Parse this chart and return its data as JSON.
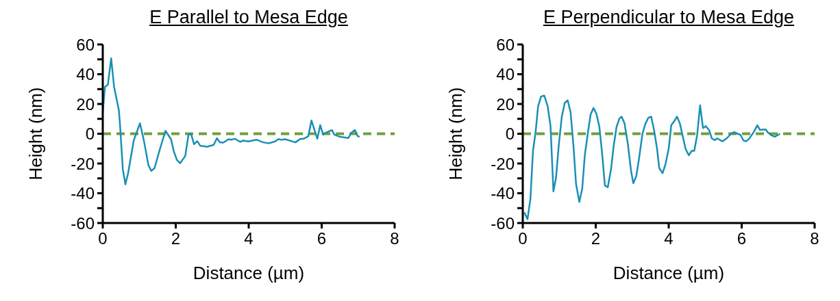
{
  "chart_data": [
    {
      "type": "line",
      "title": "E Parallel to Mesa Edge",
      "xlabel": "Distance (µm)",
      "ylabel": "Height (nm)",
      "xlim": [
        0,
        8
      ],
      "xticks": [
        0,
        2,
        4,
        6,
        8
      ],
      "ylim": [
        -60,
        60
      ],
      "yticks": [
        -60,
        {
          "value": -50,
          "label": null
        },
        -40,
        {
          "value": -30,
          "label": null
        },
        -20,
        {
          "value": -10,
          "label": null
        },
        0,
        {
          "value": 10,
          "label": null
        },
        20,
        {
          "value": 30,
          "label": null
        },
        40,
        {
          "value": 50,
          "label": null
        },
        60
      ],
      "grid": false,
      "legend": false,
      "marker": "none",
      "line_style": "solid",
      "ref_lines": [
        {
          "axis": "y",
          "value": 0,
          "color": "#6fa03c",
          "line_style": "dashed"
        }
      ],
      "series": [
        {
          "color": "#1a8fb5",
          "x": [
            0,
            0.06,
            0.14,
            0.23,
            0.31,
            0.44,
            0.47,
            0.55,
            0.62,
            0.69,
            0.79,
            0.85,
            1.02,
            1.13,
            1.25,
            1.33,
            1.42,
            1.57,
            1.72,
            1.87,
            1.95,
            2.03,
            2.12,
            2.26,
            2.35,
            2.42,
            2.5,
            2.59,
            2.67,
            2.86,
            3.04,
            3.13,
            3.21,
            3.3,
            3.45,
            3.52,
            3.62,
            3.77,
            3.85,
            3.99,
            4.21,
            4.4,
            4.56,
            4.72,
            4.81,
            4.91,
            5.0,
            5.28,
            5.42,
            5.5,
            5.63,
            5.72,
            5.88,
            5.96,
            6.04,
            6.11,
            6.28,
            6.35,
            6.51,
            6.73,
            6.81,
            6.91,
            6.98,
            7.04
          ],
          "values": [
            14.7,
            31.5,
            33,
            50.7,
            31.5,
            16,
            7,
            -24,
            -34,
            -27,
            -13,
            -4.4,
            7,
            -5,
            -21,
            -25,
            -23,
            -10,
            2,
            -3.7,
            -12,
            -17.5,
            -19.8,
            -15,
            -0.6,
            0,
            -7,
            -5,
            -8,
            -8.7,
            -7.5,
            -3,
            -5.8,
            -6,
            -3.7,
            -4,
            -3.4,
            -5.5,
            -4.6,
            -5.2,
            -4,
            -5.8,
            -6.4,
            -5.2,
            -3.7,
            -4,
            -3.7,
            -5.8,
            -3.4,
            -3.4,
            -1.8,
            8.9,
            -3.4,
            5.8,
            -0.6,
            0.6,
            2.5,
            -0.6,
            -2.1,
            -2.9,
            0.6,
            2.5,
            -1.4,
            -2.1
          ]
        }
      ]
    },
    {
      "type": "line",
      "title": "E Perpendicular to Mesa Edge",
      "xlabel": "Distance (µm)",
      "ylabel": "Height (nm)",
      "xlim": [
        0,
        8
      ],
      "xticks": [
        0,
        2,
        4,
        6,
        8
      ],
      "ylim": [
        -60,
        60
      ],
      "yticks": [
        -60,
        {
          "value": -50,
          "label": null
        },
        -40,
        {
          "value": -30,
          "label": null
        },
        -20,
        {
          "value": -10,
          "label": null
        },
        0,
        {
          "value": 10,
          "label": null
        },
        20,
        {
          "value": 30,
          "label": null
        },
        40,
        {
          "value": 50,
          "label": null
        },
        60
      ],
      "grid": false,
      "legend": false,
      "marker": "none",
      "line_style": "solid",
      "ref_lines": [
        {
          "axis": "y",
          "value": 0,
          "color": "#6fa03c",
          "line_style": "dashed"
        }
      ],
      "series": [
        {
          "color": "#1a8fb5",
          "x": [
            0.04,
            0.13,
            0.21,
            0.28,
            0.35,
            0.42,
            0.5,
            0.59,
            0.68,
            0.76,
            0.84,
            0.91,
            0.99,
            1.07,
            1.15,
            1.23,
            1.31,
            1.39,
            1.46,
            1.55,
            1.63,
            1.7,
            1.79,
            1.86,
            1.94,
            2.02,
            2.1,
            2.18,
            2.25,
            2.33,
            2.42,
            2.49,
            2.57,
            2.65,
            2.71,
            2.79,
            2.88,
            2.97,
            3.03,
            3.11,
            3.19,
            3.28,
            3.36,
            3.44,
            3.52,
            3.6,
            3.68,
            3.74,
            3.83,
            3.91,
            4.0,
            4.07,
            4.15,
            4.23,
            4.31,
            4.39,
            4.46,
            4.55,
            4.63,
            4.7,
            4.78,
            4.86,
            4.94,
            5.02,
            5.11,
            5.18,
            5.26,
            5.33,
            5.47,
            5.59,
            5.71,
            5.79,
            5.89,
            5.97,
            6.05,
            6.12,
            6.2,
            6.33,
            6.43,
            6.5,
            6.66,
            6.72,
            6.82,
            6.91,
            7.05
          ],
          "values": [
            -52.8,
            -57.4,
            -43.6,
            -11.5,
            0.8,
            18.4,
            25,
            25.6,
            18.8,
            5.4,
            -38.7,
            -29.9,
            -6.9,
            11.5,
            20.7,
            22.5,
            14.5,
            -8.4,
            -33.7,
            -45.9,
            -36.8,
            -14.5,
            1.5,
            13,
            17.3,
            13.3,
            4.6,
            -14.5,
            -34.8,
            -36,
            -23.7,
            -8.4,
            4.6,
            10.3,
            11.5,
            6.9,
            -6.9,
            -25.3,
            -33.2,
            -28.6,
            -16.1,
            0,
            6.6,
            10.7,
            11.5,
            2.3,
            -10,
            -23,
            -26.5,
            -20.7,
            -10,
            5.7,
            8.4,
            11.5,
            6.6,
            -2.3,
            -10,
            -14.5,
            -11.5,
            -11.5,
            -0.8,
            19.1,
            3.8,
            5.1,
            2.3,
            -3.1,
            -4.3,
            -3.1,
            -5.1,
            -3.1,
            0,
            1.1,
            0,
            -0.8,
            -4.6,
            -5.1,
            -3.5,
            1.1,
            5.7,
            2.6,
            2.9,
            0.8,
            -1.1,
            -2,
            0
          ]
        }
      ]
    }
  ]
}
